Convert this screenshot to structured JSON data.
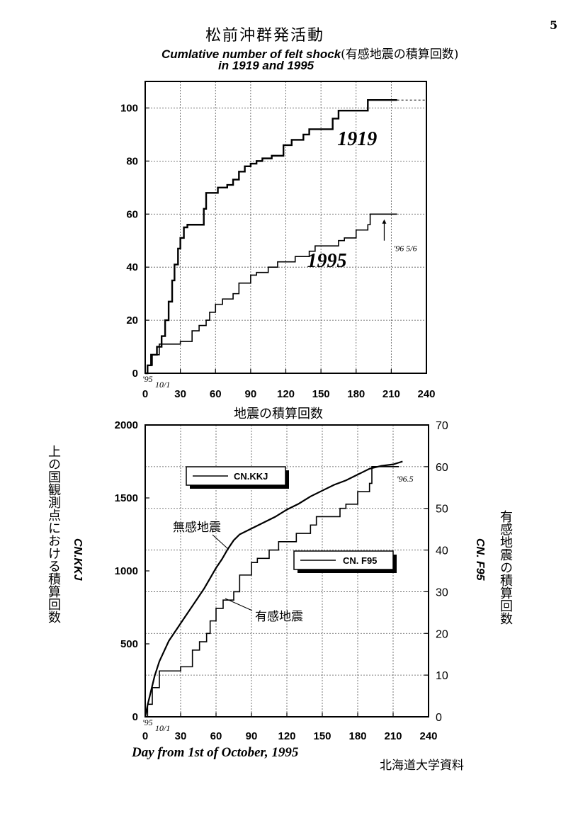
{
  "header": {
    "page_number": "5",
    "title_jp": "松前沖群発活動",
    "title_en_line1": "Cumlative number of felt shock",
    "title_en_line1_jp": "(有感地震の積算回数)",
    "title_en_line2": "in 1919 and 1995"
  },
  "chart_data": [
    {
      "type": "line",
      "title": "Cumlative number of felt shock (有感地震の積算回数) in 1919 and 1995",
      "xlim": [
        0,
        240
      ],
      "ylim": [
        0,
        110
      ],
      "x_ticks": [
        "0",
        "30",
        "60",
        "90",
        "120",
        "150",
        "180",
        "210",
        "240"
      ],
      "y_ticks": [
        "0",
        "20",
        "40",
        "60",
        "80",
        "100"
      ],
      "grid": true,
      "annotations": {
        "origin_label": "'95",
        "origin_date": "10/1",
        "end_date": "'96 5/6"
      },
      "series": [
        {
          "name": "1919",
          "points": [
            [
              0,
              0
            ],
            [
              2,
              3
            ],
            [
              5,
              7
            ],
            [
              10,
              10
            ],
            [
              14,
              14
            ],
            [
              17,
              20
            ],
            [
              20,
              27
            ],
            [
              23,
              35
            ],
            [
              25,
              41
            ],
            [
              28,
              47
            ],
            [
              30,
              51
            ],
            [
              33,
              55
            ],
            [
              36,
              56
            ],
            [
              48,
              56
            ],
            [
              50,
              62
            ],
            [
              52,
              68
            ],
            [
              60,
              68
            ],
            [
              62,
              70
            ],
            [
              70,
              71
            ],
            [
              75,
              73
            ],
            [
              80,
              76
            ],
            [
              85,
              78
            ],
            [
              90,
              79
            ],
            [
              95,
              80
            ],
            [
              100,
              81
            ],
            [
              108,
              82
            ],
            [
              118,
              86
            ],
            [
              125,
              88
            ],
            [
              135,
              90
            ],
            [
              140,
              92
            ],
            [
              155,
              92
            ],
            [
              160,
              96
            ],
            [
              165,
              99
            ],
            [
              188,
              99
            ],
            [
              190,
              103
            ],
            [
              215,
              103
            ]
          ]
        },
        {
          "name": "1995",
          "points": [
            [
              0,
              0
            ],
            [
              2,
              3
            ],
            [
              6,
              7
            ],
            [
              12,
              11
            ],
            [
              20,
              11
            ],
            [
              30,
              12
            ],
            [
              35,
              12
            ],
            [
              40,
              16
            ],
            [
              46,
              18
            ],
            [
              52,
              20
            ],
            [
              55,
              23
            ],
            [
              60,
              26
            ],
            [
              66,
              28
            ],
            [
              75,
              30
            ],
            [
              80,
              34
            ],
            [
              90,
              37
            ],
            [
              95,
              38
            ],
            [
              100,
              38
            ],
            [
              105,
              40
            ],
            [
              113,
              42
            ],
            [
              125,
              42
            ],
            [
              128,
              44
            ],
            [
              140,
              46
            ],
            [
              145,
              48
            ],
            [
              160,
              48
            ],
            [
              165,
              50
            ],
            [
              170,
              51
            ],
            [
              180,
              54
            ],
            [
              190,
              56
            ],
            [
              192,
              60
            ],
            [
              215,
              60
            ]
          ]
        }
      ],
      "labels": [
        "1919",
        "1995"
      ]
    },
    {
      "type": "line",
      "title": "地震の積算回数",
      "xlabel": "Day from 1st of October, 1995",
      "ylabel_left": "上の国観測点における積算回数",
      "ylabel_left_en": "CN.KKJ",
      "ylabel_right": "有感地震の積算回数",
      "ylabel_right_en": "CN. F95",
      "xlim": [
        0,
        240
      ],
      "ylim_left": [
        0,
        2000
      ],
      "ylim_right": [
        0,
        70
      ],
      "x_ticks": [
        "0",
        "30",
        "60",
        "90",
        "120",
        "150",
        "180",
        "210",
        "240"
      ],
      "y_ticks_left": [
        "0",
        "500",
        "1000",
        "1500",
        "2000"
      ],
      "y_ticks_right": [
        "0",
        "10",
        "20",
        "30",
        "40",
        "50",
        "60",
        "70"
      ],
      "grid": true,
      "annotations": {
        "origin_label": "'95",
        "origin_date": "10/1",
        "end_date": "'96.5",
        "unfelt_label": "無感地震",
        "felt_label": "有感地震"
      },
      "series": [
        {
          "name": "CN.KKJ",
          "axis": "left",
          "points": [
            [
              0,
              0
            ],
            [
              2,
              80
            ],
            [
              5,
              180
            ],
            [
              8,
              280
            ],
            [
              12,
              380
            ],
            [
              16,
              450
            ],
            [
              20,
              520
            ],
            [
              25,
              580
            ],
            [
              30,
              640
            ],
            [
              35,
              700
            ],
            [
              40,
              760
            ],
            [
              45,
              820
            ],
            [
              50,
              880
            ],
            [
              55,
              950
            ],
            [
              60,
              1020
            ],
            [
              65,
              1080
            ],
            [
              70,
              1150
            ],
            [
              75,
              1210
            ],
            [
              80,
              1250
            ],
            [
              90,
              1290
            ],
            [
              100,
              1330
            ],
            [
              110,
              1370
            ],
            [
              120,
              1420
            ],
            [
              130,
              1460
            ],
            [
              140,
              1510
            ],
            [
              150,
              1550
            ],
            [
              160,
              1590
            ],
            [
              170,
              1620
            ],
            [
              180,
              1660
            ],
            [
              190,
              1700
            ],
            [
              200,
              1720
            ],
            [
              210,
              1730
            ],
            [
              218,
              1750
            ]
          ]
        },
        {
          "name": "CN. F95",
          "axis": "right",
          "points": [
            [
              0,
              0
            ],
            [
              2,
              3
            ],
            [
              6,
              7
            ],
            [
              12,
              11
            ],
            [
              20,
              11
            ],
            [
              30,
              12
            ],
            [
              35,
              12
            ],
            [
              40,
              16
            ],
            [
              46,
              18
            ],
            [
              52,
              20
            ],
            [
              55,
              23
            ],
            [
              60,
              26
            ],
            [
              66,
              28
            ],
            [
              75,
              30
            ],
            [
              80,
              34
            ],
            [
              90,
              37
            ],
            [
              95,
              38
            ],
            [
              100,
              38
            ],
            [
              105,
              40
            ],
            [
              113,
              42
            ],
            [
              125,
              42
            ],
            [
              128,
              44
            ],
            [
              140,
              46
            ],
            [
              145,
              48
            ],
            [
              160,
              48
            ],
            [
              165,
              50
            ],
            [
              170,
              51
            ],
            [
              180,
              54
            ],
            [
              190,
              56
            ],
            [
              192,
              60
            ],
            [
              215,
              60
            ]
          ]
        }
      ]
    }
  ],
  "footer": {
    "source": "北海道大学資料"
  }
}
